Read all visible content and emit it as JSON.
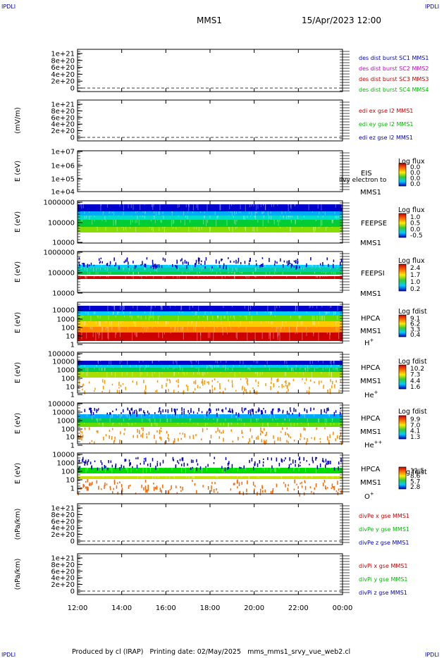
{
  "header": {
    "corner_left": "IPDLI",
    "corner_right": "IPDLI",
    "mission": "MMS1",
    "datetime": "15/Apr/2023 12:00"
  },
  "footer": {
    "text": "Produced by cl (IRAP)   Printing date: 02/May/2025   mms_mms1_srvy_vue_web2.cl",
    "corner_left": "IPDLI",
    "corner_right": "IPDLI"
  },
  "colors": {
    "blue": "#0000cc",
    "magenta": "#cc00cc",
    "red": "#cc0000",
    "green": "#00bb00"
  },
  "chart_data": {
    "type": "heatmap",
    "x_ticks": [
      "12:00",
      "14:00",
      "16:00",
      "18:00",
      "20:00",
      "22:00",
      "00:00"
    ],
    "panels": [
      {
        "id": "p1",
        "ylabel": "",
        "yticks": [
          "1e+21",
          "8e+20",
          "6e+20",
          "4e+20",
          "2e+20",
          "0"
        ],
        "legend": [
          {
            "text": "des dist burst SC1 MMS1",
            "color": "#0000cc"
          },
          {
            "text": "des dist burst SC2 MMS2",
            "color": "#cc00cc"
          },
          {
            "text": "des dist burst SC3 MMS3",
            "color": "#cc0000"
          },
          {
            "text": "des dist burst SC4 MMS4",
            "color": "#00bb00"
          }
        ]
      },
      {
        "id": "p2",
        "ylabel": "(mV/m)",
        "yticks": [
          "1e+21",
          "8e+20",
          "6e+20",
          "4e+20",
          "2e+20",
          "0"
        ],
        "legend": [
          {
            "text": "edi ex gse l2 MMS1",
            "color": "#cc0000"
          },
          {
            "text": "edi ey gse l2 MMS1",
            "color": "#00bb00"
          },
          {
            "text": "edi ez gse l2 MMS1",
            "color": "#0000cc"
          }
        ]
      },
      {
        "id": "p3",
        "ylabel": "E (eV)",
        "yticks": [
          "1e+07",
          "1e+06",
          "1e+05",
          "1e+04"
        ],
        "instrument": [
          "EIS",
          "MMS1"
        ],
        "extra_label": "Ilvy electron to",
        "cbar_title": "Log flux",
        "cbar_ticks": [
          "0.0",
          "0.0",
          "0.0",
          "0.0"
        ]
      },
      {
        "id": "p4",
        "ylabel": "E (eV)",
        "yticks": [
          "1000000",
          "100000",
          "10000"
        ],
        "instrument": [
          "FEEPSE",
          "MMS1"
        ],
        "cbar_title": "Log flux",
        "cbar_ticks": [
          "1.0",
          "0.5",
          "0.0",
          "-0.5"
        ]
      },
      {
        "id": "p5",
        "ylabel": "E (eV)",
        "yticks": [
          "1000000",
          "100000",
          "10000"
        ],
        "instrument": [
          "FEEPSI",
          "MMS1"
        ],
        "cbar_title": "Log flux",
        "cbar_ticks": [
          "2.4",
          "1.7",
          "1.0",
          "0.2"
        ]
      },
      {
        "id": "p6",
        "ylabel": "E (eV)",
        "yticks": [
          "10000",
          "1000",
          "100",
          "10",
          "1"
        ],
        "instrument": [
          "HPCA",
          "MMS1"
        ],
        "species": "H",
        "species_sup": "+",
        "cbar_title": "Log fdist",
        "cbar_ticks": [
          "9.1",
          "6.2",
          "3.3",
          "0.4"
        ]
      },
      {
        "id": "p7",
        "ylabel": "E (eV)",
        "yticks": [
          "100000",
          "10000",
          "1000",
          "100",
          "10",
          "1"
        ],
        "instrument": [
          "HPCA",
          "MMS1"
        ],
        "species": "He",
        "species_sup": "+",
        "cbar_title": "Log fdist",
        "cbar_ticks": [
          "10.2",
          "7.3",
          "4.4",
          "1.6"
        ]
      },
      {
        "id": "p8",
        "ylabel": "E (eV)",
        "yticks": [
          "100000",
          "10000",
          "1000",
          "100",
          "10",
          "1"
        ],
        "instrument": [
          "HPCA",
          "MMS1"
        ],
        "species": "He",
        "species_sup": "++",
        "cbar_title": "Log fdist",
        "cbar_ticks": [
          "9.9",
          "7.0",
          "4.1",
          "1.3"
        ]
      },
      {
        "id": "p9",
        "ylabel": "E (eV)",
        "yticks": [
          "10000",
          "1000",
          "100",
          "10",
          "1"
        ],
        "instrument": [
          "HPCA",
          "MMS1"
        ],
        "species": "O",
        "species_sup": "+",
        "cbar_title": "Log fdist",
        "cbar_ticks": [
          "11.5",
          "8.6",
          "5.7",
          "2.8"
        ]
      },
      {
        "id": "p10",
        "ylabel": "(nPa/km)",
        "yticks": [
          "1e+21",
          "8e+20",
          "6e+20",
          "4e+20",
          "2e+20",
          "0"
        ],
        "legend": [
          {
            "text": "divPe x gse MMS1",
            "color": "#cc0000"
          },
          {
            "text": "divPe y gse MMS1",
            "color": "#00bb00"
          },
          {
            "text": "divPe z gse MMS1",
            "color": "#0000cc"
          }
        ]
      },
      {
        "id": "p11",
        "ylabel": "(nPa/km)",
        "yticks": [
          "1e+21",
          "8e+20",
          "6e+20",
          "4e+20",
          "2e+20",
          "0"
        ],
        "legend": [
          {
            "text": "divPi x gse MMS1",
            "color": "#cc0000"
          },
          {
            "text": "divPi y gse MMS1",
            "color": "#00bb00"
          },
          {
            "text": "divPi z gse MMS1",
            "color": "#0000cc"
          }
        ]
      }
    ]
  }
}
